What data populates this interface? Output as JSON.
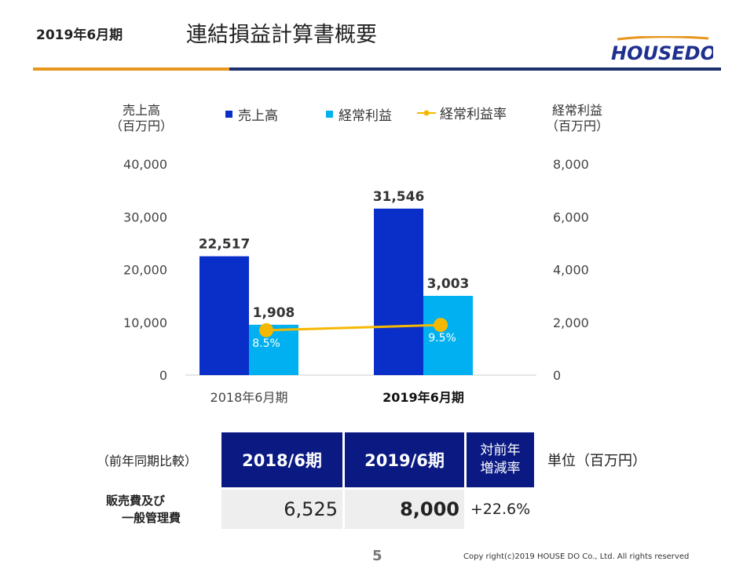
{
  "header": {
    "period_label": "2019年6月期",
    "title": "連結損益計算書概要",
    "logo_text": "HOUSEDO",
    "accent_orange": "#e8961e",
    "accent_navy": "#1e2f6e"
  },
  "chart_data": {
    "type": "bar",
    "categories": [
      "2018年6月期",
      "2019年6月期"
    ],
    "series": [
      {
        "name": "売上高",
        "axis": "left",
        "values": [
          22517,
          31546
        ],
        "labels": [
          "22,517",
          "31,546"
        ],
        "color": "#0a2fc8"
      },
      {
        "name": "経常利益",
        "axis": "right",
        "values": [
          1908,
          3003
        ],
        "labels": [
          "1,908",
          "3,003"
        ],
        "color": "#00b0f0"
      },
      {
        "name": "経常利益率",
        "type": "line",
        "values": [
          8.5,
          9.5
        ],
        "labels": [
          "8.5%",
          "9.5%"
        ],
        "color": "#f5b800"
      }
    ],
    "left_axis": {
      "title_line1": "売上高",
      "title_line2": "（百万円）",
      "range": [
        0,
        40000
      ],
      "ticks": [
        "0",
        "10,000",
        "20,000",
        "30,000",
        "40,000"
      ]
    },
    "right_axis": {
      "title_line1": "経常利益",
      "title_line2": "（百万円）",
      "range": [
        0,
        8000
      ],
      "ticks": [
        "0",
        "2,000",
        "4,000",
        "6,000",
        "8,000"
      ]
    },
    "legend_position": "top",
    "grid": false
  },
  "table": {
    "caption": "（前年同期比較）",
    "unit": "単位（百万円）",
    "headers": [
      "2018/6期",
      "2019/6期"
    ],
    "change_header_line1": "対前年",
    "change_header_line2": "増減率",
    "row": {
      "label_line1": "販売費及び",
      "label_line2": "一般管理費",
      "values": [
        "6,525",
        "8,000"
      ],
      "change": "+22.6%"
    }
  },
  "footer": {
    "page_number": "5",
    "copyright": "Copy right(c)2019 HOUSE DO Co., Ltd. All rights reserved"
  }
}
